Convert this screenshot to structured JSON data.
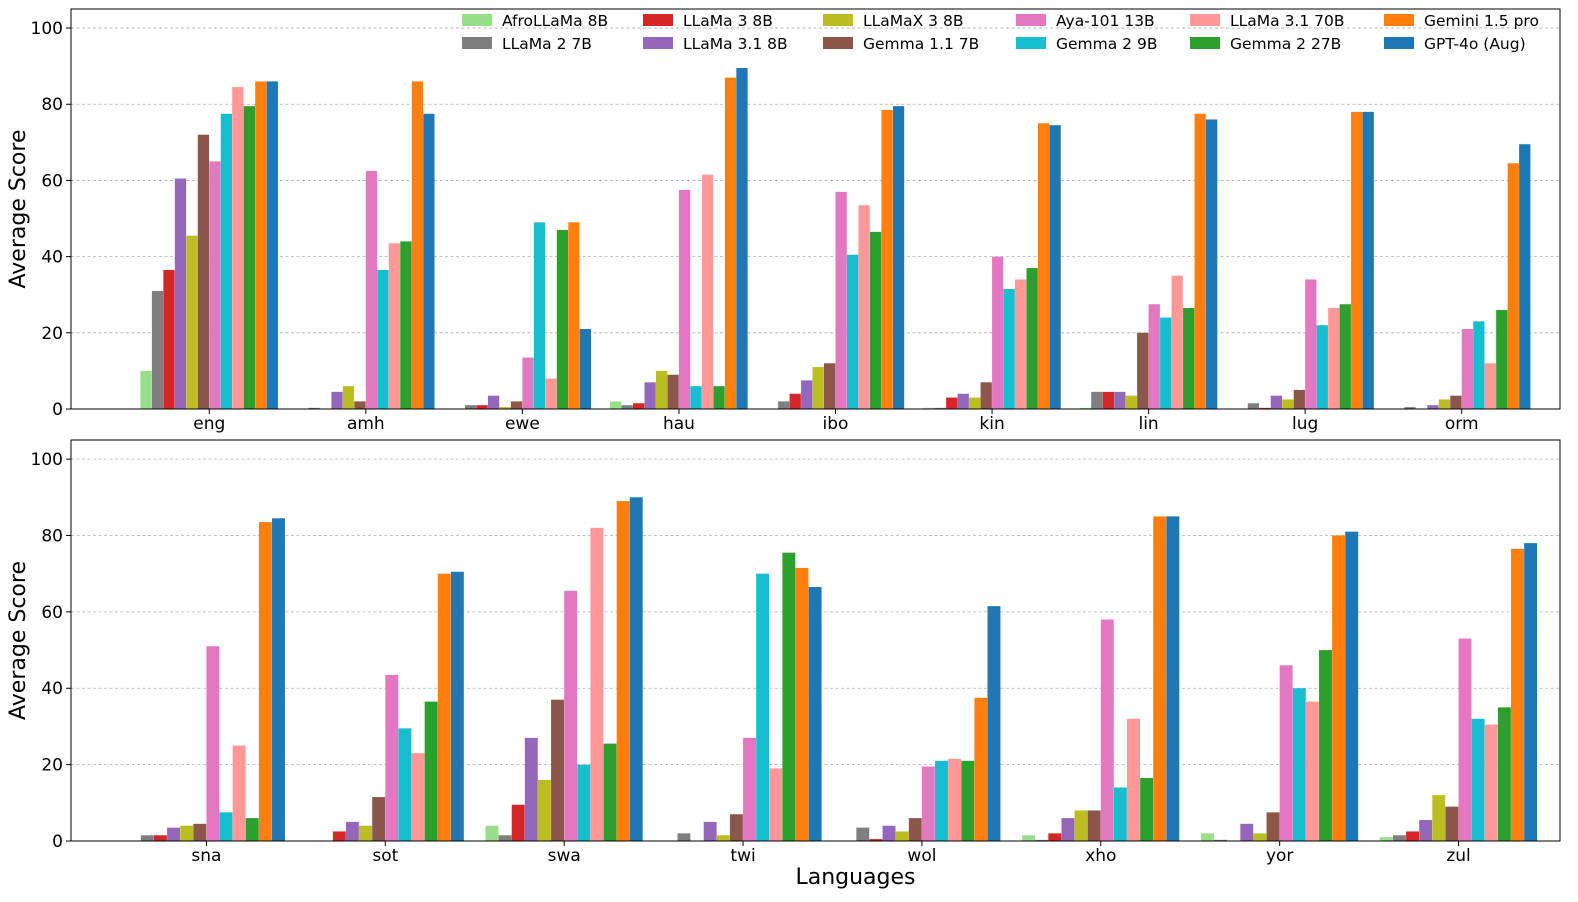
{
  "chart_data": [
    {
      "type": "bar",
      "title": "",
      "xlabel": "",
      "ylabel": "Average Score",
      "ylim": [
        0,
        105
      ],
      "yticks": [
        0,
        20,
        40,
        60,
        80,
        100
      ],
      "grid": "horizontal dashed",
      "legend_position": "top-right",
      "categories": [
        "eng",
        "amh",
        "ewe",
        "hau",
        "ibo",
        "kin",
        "lin",
        "lug",
        "orm"
      ],
      "series": [
        {
          "name": "AfroLLaMa 8B",
          "color": "#98df8a",
          "values": [
            10,
            0,
            0,
            2,
            0,
            0.3,
            0.3,
            0,
            0
          ]
        },
        {
          "name": "LLaMa 2 7B",
          "color": "#7f7f7f",
          "values": [
            31,
            0.3,
            1,
            1,
            2,
            0.3,
            4.5,
            1.5,
            0.5
          ]
        },
        {
          "name": "LLaMa 3 8B",
          "color": "#d62728",
          "values": [
            36.5,
            0,
            1,
            1.5,
            4,
            3,
            4.5,
            0.3,
            0
          ]
        },
        {
          "name": "LLaMa 3.1 8B",
          "color": "#9467bd",
          "values": [
            60.5,
            4.5,
            3.5,
            7,
            7.5,
            4,
            4.5,
            3.5,
            1
          ]
        },
        {
          "name": "LLaMaX 3 8B",
          "color": "#bcbd22",
          "values": [
            45.5,
            6,
            0.5,
            10,
            11,
            3,
            3.5,
            2.5,
            2.5
          ]
        },
        {
          "name": "Gemma 1.1 7B",
          "color": "#8c564b",
          "values": [
            72,
            2,
            2,
            9,
            12,
            7,
            20,
            5,
            3.5
          ]
        },
        {
          "name": "Aya-101 13B",
          "color": "#e377c2",
          "values": [
            65,
            62.5,
            13.5,
            57.5,
            57,
            40,
            27.5,
            34,
            21
          ]
        },
        {
          "name": "Gemma 2 9B",
          "color": "#17becf",
          "values": [
            77.5,
            36.5,
            49,
            6,
            40.5,
            31.5,
            24,
            22,
            23
          ]
        },
        {
          "name": "LLaMa 3.1 70B",
          "color": "#ff9896",
          "values": [
            84.5,
            43.5,
            8,
            61.5,
            53.5,
            34,
            35,
            26.5,
            12
          ]
        },
        {
          "name": "Gemma 2 27B",
          "color": "#2ca02c",
          "values": [
            79.5,
            44,
            47,
            6,
            46.5,
            37,
            26.5,
            27.5,
            26
          ]
        },
        {
          "name": "Gemini 1.5 pro",
          "color": "#ff7f0e",
          "values": [
            86,
            86,
            49,
            87,
            78.5,
            75,
            77.5,
            78,
            64.5
          ]
        },
        {
          "name": "GPT-4o (Aug)",
          "color": "#1f77b4",
          "values": [
            86,
            77.5,
            21,
            89.5,
            79.5,
            74.5,
            76,
            78,
            69.5
          ]
        }
      ]
    },
    {
      "type": "bar",
      "title": "",
      "xlabel": "Languages",
      "ylabel": "Average Score",
      "ylim": [
        0,
        105
      ],
      "yticks": [
        0,
        20,
        40,
        60,
        80,
        100
      ],
      "grid": "horizontal dashed",
      "categories": [
        "sna",
        "sot",
        "swa",
        "twi",
        "wol",
        "xho",
        "yor",
        "zul"
      ],
      "series": [
        {
          "name": "AfroLLaMa 8B",
          "color": "#98df8a",
          "values": [
            0,
            0,
            4,
            0,
            0,
            1.5,
            2,
            1
          ]
        },
        {
          "name": "LLaMa 2 7B",
          "color": "#7f7f7f",
          "values": [
            1.5,
            0,
            1.5,
            2,
            3.5,
            0.3,
            0.3,
            1.5
          ]
        },
        {
          "name": "LLaMa 3 8B",
          "color": "#d62728",
          "values": [
            1.5,
            2.5,
            9.5,
            0,
            0.5,
            2,
            0,
            2.5
          ]
        },
        {
          "name": "LLaMa 3.1 8B",
          "color": "#9467bd",
          "values": [
            3.5,
            5,
            27,
            5,
            4,
            6,
            4.5,
            5.5
          ]
        },
        {
          "name": "LLaMaX 3 8B",
          "color": "#bcbd22",
          "values": [
            4,
            4,
            16,
            1.5,
            2.5,
            8,
            2,
            12
          ]
        },
        {
          "name": "Gemma 1.1 7B",
          "color": "#8c564b",
          "values": [
            4.5,
            11.5,
            37,
            7,
            6,
            8,
            7.5,
            9
          ]
        },
        {
          "name": "Aya-101 13B",
          "color": "#e377c2",
          "values": [
            51,
            43.5,
            65.5,
            27,
            19.5,
            58,
            46,
            53
          ]
        },
        {
          "name": "Gemma 2 9B",
          "color": "#17becf",
          "values": [
            7.5,
            29.5,
            20,
            70,
            21,
            14,
            40,
            32
          ]
        },
        {
          "name": "LLaMa 3.1 70B",
          "color": "#ff9896",
          "values": [
            25,
            23,
            82,
            19,
            21.5,
            32,
            36.5,
            30.5
          ]
        },
        {
          "name": "Gemma 2 27B",
          "color": "#2ca02c",
          "values": [
            6,
            36.5,
            25.5,
            75.5,
            21,
            16.5,
            50,
            35
          ]
        },
        {
          "name": "Gemini 1.5 pro",
          "color": "#ff7f0e",
          "values": [
            83.5,
            70,
            89,
            71.5,
            37.5,
            85,
            80,
            76.5
          ]
        },
        {
          "name": "GPT-4o (Aug)",
          "color": "#1f77b4",
          "values": [
            84.5,
            70.5,
            90,
            66.5,
            61.5,
            85,
            81,
            78
          ]
        }
      ]
    }
  ]
}
